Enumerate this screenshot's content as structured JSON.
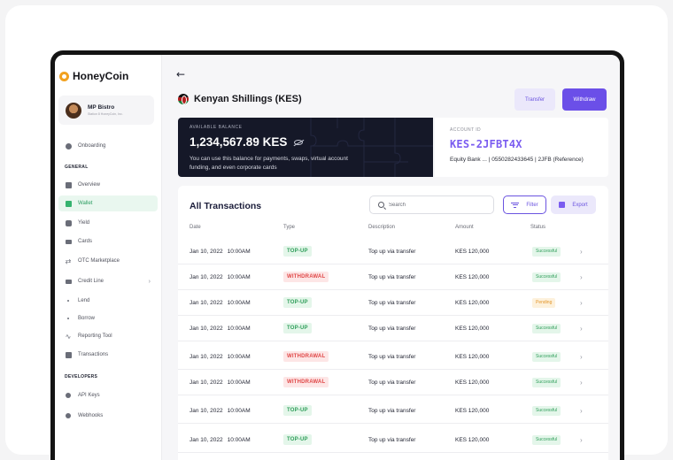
{
  "brand": {
    "name": "HoneyCoin"
  },
  "profile": {
    "name": "MP Bistro",
    "subtitle": "Station 8 HoneyCoin, Inc."
  },
  "sidebar": {
    "onboarding": "Onboarding",
    "general_label": "GENERAL",
    "items": [
      {
        "label": "Overview"
      },
      {
        "label": "Wallet"
      },
      {
        "label": "Yield"
      },
      {
        "label": "Cards"
      },
      {
        "label": "OTC Marketplace"
      },
      {
        "label": "Credit Line"
      },
      {
        "label": "Lend"
      },
      {
        "label": "Borrow"
      },
      {
        "label": "Reporting Tool"
      },
      {
        "label": "Transactions"
      }
    ],
    "developers_label": "DEVELOPERS",
    "dev_items": [
      {
        "label": "API Keys"
      },
      {
        "label": "Webhooks"
      }
    ]
  },
  "header": {
    "currency_title": "Kenyan Shillings (KES)",
    "transfer_label": "Transfer",
    "withdraw_label": "Withdraw"
  },
  "balance": {
    "label": "AVAILABLE BALANCE",
    "amount": "1,234,567.89 KES",
    "description": "You can use this balance for payments, swaps, virtual account funding, and even corporate cards"
  },
  "account": {
    "label": "ACCOUNT ID",
    "id": "KES-2JFBT4X",
    "bank_line": "Equity Bank ... | 0550282433645 | 2JFB (Reference)"
  },
  "transactions": {
    "title": "All Transactions",
    "search_placeholder": "Search",
    "filter_label": "Filter",
    "export_label": "Export",
    "columns": [
      "Date",
      "Type",
      "Description",
      "Amount",
      "Status"
    ],
    "rows": [
      {
        "date": "Jan 10, 2022",
        "time": "10:00AM",
        "type": "TOP-UP",
        "description": "Top up via transfer",
        "amount": "KES 120,000",
        "status": "Successful"
      },
      {
        "date": "Jan 10, 2022",
        "time": "10:00AM",
        "type": "WITHDRAWAL",
        "description": "Top up via transfer",
        "amount": "KES 120,000",
        "status": "Successful"
      },
      {
        "date": "Jan 10, 2022",
        "time": "10:00AM",
        "type": "TOP-UP",
        "description": "Top up via transfer",
        "amount": "KES 120,000",
        "status": "Pending"
      },
      {
        "date": "Jan 10, 2022",
        "time": "10:00AM",
        "type": "TOP-UP",
        "description": "Top up via transfer",
        "amount": "KES 120,000",
        "status": "Successful"
      },
      {
        "date": "Jan 10, 2022",
        "time": "10:00AM",
        "type": "WITHDRAWAL",
        "description": "Top up via transfer",
        "amount": "KES 120,000",
        "status": "Successful"
      },
      {
        "date": "Jan 10, 2022",
        "time": "10:00AM",
        "type": "WITHDRAWAL",
        "description": "Top up via transfer",
        "amount": "KES 120,000",
        "status": "Successful"
      },
      {
        "date": "Jan 10, 2022",
        "time": "10:00AM",
        "type": "TOP-UP",
        "description": "Top up via transfer",
        "amount": "KES 120,000",
        "status": "Successful"
      },
      {
        "date": "Jan 10, 2022",
        "time": "10:00AM",
        "type": "TOP-UP",
        "description": "Top up via transfer",
        "amount": "KES 120,000",
        "status": "Successful"
      }
    ]
  },
  "colors": {
    "accent": "#6b4fe8",
    "topup_bg": "#e4f6ea",
    "topup_fg": "#2f9e5a",
    "withdrawal_bg": "#fde6e6",
    "withdrawal_fg": "#e04848",
    "success_bg": "#e4f6ea",
    "success_fg": "#2f9e5a",
    "pending_bg": "#fdf1dc",
    "pending_fg": "#e3962a"
  }
}
